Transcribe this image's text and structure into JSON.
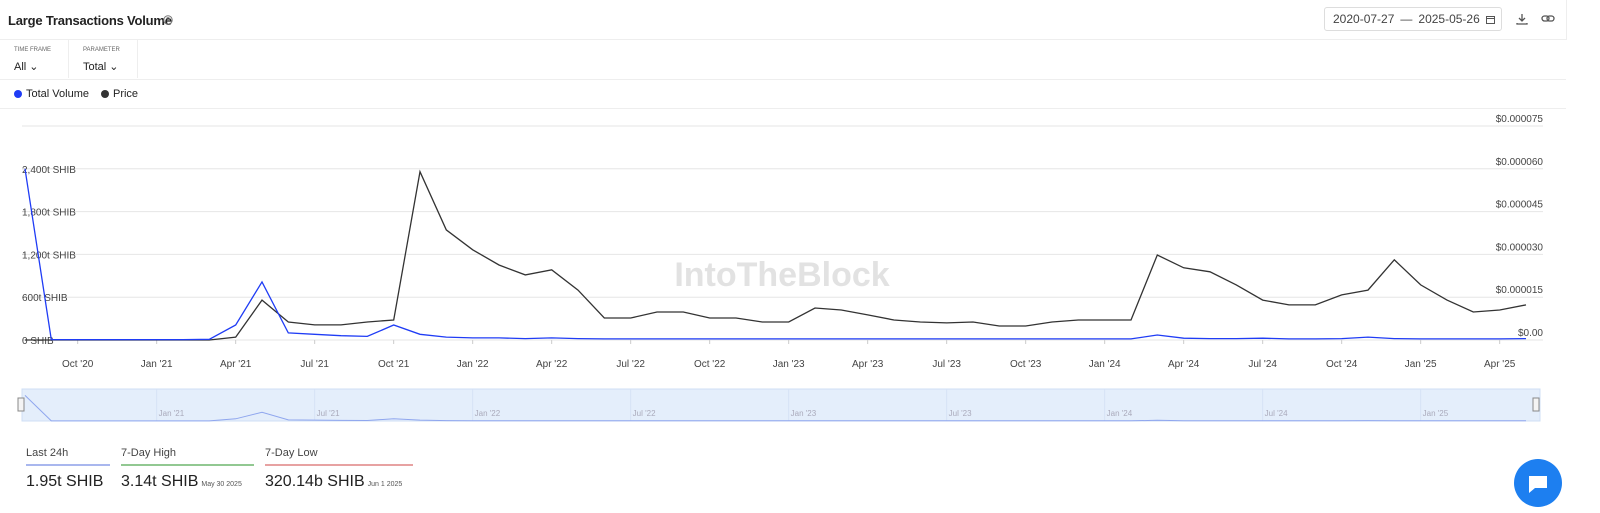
{
  "header": {
    "title": "Large Transactions Volume",
    "date_from": "2020-07-27",
    "date_separator": "—",
    "date_to": "2025-05-26"
  },
  "controls": [
    {
      "label": "TIME FRAME",
      "value": "All"
    },
    {
      "label": "PARAMETER",
      "value": "Total"
    }
  ],
  "watermark": "IntoTheBlock",
  "chart_data": {
    "type": "line",
    "x": [
      "2020-08",
      "2020-09",
      "2020-10",
      "2020-11",
      "2020-12",
      "2021-01",
      "2021-02",
      "2021-03",
      "2021-04",
      "2021-05",
      "2021-06",
      "2021-07",
      "2021-08",
      "2021-09",
      "2021-10",
      "2021-11",
      "2021-12",
      "2022-01",
      "2022-02",
      "2022-03",
      "2022-04",
      "2022-05",
      "2022-06",
      "2022-07",
      "2022-08",
      "2022-09",
      "2022-10",
      "2022-11",
      "2022-12",
      "2023-01",
      "2023-02",
      "2023-03",
      "2023-04",
      "2023-05",
      "2023-06",
      "2023-07",
      "2023-08",
      "2023-09",
      "2023-10",
      "2023-11",
      "2023-12",
      "2024-01",
      "2024-02",
      "2024-03",
      "2024-04",
      "2024-05",
      "2024-06",
      "2024-07",
      "2024-08",
      "2024-09",
      "2024-10",
      "2024-11",
      "2024-12",
      "2025-01",
      "2025-02",
      "2025-03",
      "2025-04",
      "2025-05"
    ],
    "xlim": [
      "2020-08",
      "2025-05"
    ],
    "xticks": [
      {
        "value": "2020-10",
        "label": "Oct '20"
      },
      {
        "value": "2021-01",
        "label": "Jan '21"
      },
      {
        "value": "2021-04",
        "label": "Apr '21"
      },
      {
        "value": "2021-07",
        "label": "Jul '21"
      },
      {
        "value": "2021-10",
        "label": "Oct '21"
      },
      {
        "value": "2022-01",
        "label": "Jan '22"
      },
      {
        "value": "2022-04",
        "label": "Apr '22"
      },
      {
        "value": "2022-07",
        "label": "Jul '22"
      },
      {
        "value": "2022-10",
        "label": "Oct '22"
      },
      {
        "value": "2023-01",
        "label": "Jan '23"
      },
      {
        "value": "2023-04",
        "label": "Apr '23"
      },
      {
        "value": "2023-07",
        "label": "Jul '23"
      },
      {
        "value": "2023-10",
        "label": "Oct '23"
      },
      {
        "value": "2024-01",
        "label": "Jan '24"
      },
      {
        "value": "2024-04",
        "label": "Apr '24"
      },
      {
        "value": "2024-07",
        "label": "Jul '24"
      },
      {
        "value": "2024-10",
        "label": "Oct '24"
      },
      {
        "value": "2025-01",
        "label": "Jan '25"
      },
      {
        "value": "2025-04",
        "label": "Apr '25"
      }
    ],
    "navigator_xticks": [
      {
        "value": "2021-01",
        "label": "Jan '21"
      },
      {
        "value": "2021-07",
        "label": "Jul '21"
      },
      {
        "value": "2022-01",
        "label": "Jan '22"
      },
      {
        "value": "2022-07",
        "label": "Jul '22"
      },
      {
        "value": "2023-01",
        "label": "Jan '23"
      },
      {
        "value": "2023-07",
        "label": "Jul '23"
      },
      {
        "value": "2024-01",
        "label": "Jan '24"
      },
      {
        "value": "2024-07",
        "label": "Jul '24"
      },
      {
        "value": "2025-01",
        "label": "Jan '25"
      }
    ],
    "ylim": [
      0,
      3000
    ],
    "yticks": [
      {
        "value": 0,
        "label": "0 SHIB"
      },
      {
        "value": 600,
        "label": "600t SHIB"
      },
      {
        "value": 1200,
        "label": "1,200t SHIB"
      },
      {
        "value": 1800,
        "label": "1,800t SHIB"
      },
      {
        "value": 2400,
        "label": "2,400t SHIB"
      }
    ],
    "y2lim": [
      0,
      7.5e-05
    ],
    "y2ticks": [
      {
        "value": 0,
        "label": "$0.00"
      },
      {
        "value": 1.5e-05,
        "label": "$0.000015"
      },
      {
        "value": 3e-05,
        "label": "$0.000030"
      },
      {
        "value": 4.5e-05,
        "label": "$0.000045"
      },
      {
        "value": 6e-05,
        "label": "$0.000060"
      },
      {
        "value": 7.5e-05,
        "label": "$0.000075"
      }
    ],
    "grid": true,
    "series": [
      {
        "name": "Total Volume",
        "color": "#1f3cf5",
        "values": [
          2400,
          5,
          5,
          5,
          5,
          5,
          5,
          10,
          210,
          814,
          100,
          80,
          60,
          50,
          210,
          80,
          40,
          30,
          30,
          20,
          30,
          20,
          15,
          15,
          15,
          15,
          15,
          15,
          15,
          15,
          15,
          15,
          15,
          15,
          15,
          15,
          15,
          15,
          15,
          15,
          15,
          15,
          15,
          70,
          25,
          20,
          20,
          25,
          15,
          15,
          20,
          40,
          20,
          15,
          15,
          15,
          15,
          20
        ]
      },
      {
        "name": "Price",
        "color": "#333333",
        "axis": "y2",
        "values": [
          0,
          0,
          0,
          0,
          0,
          0,
          0,
          0,
          1e-06,
          1.4e-05,
          6.3e-06,
          5.3e-06,
          5.3e-06,
          6.3e-06,
          7e-06,
          5.9e-05,
          3.86e-05,
          3.16e-05,
          2.63e-05,
          2.28e-05,
          2.46e-05,
          1.75e-05,
          7.7e-06,
          7.7e-06,
          9.8e-06,
          9.8e-06,
          7.7e-06,
          7.7e-06,
          6.3e-06,
          6.3e-06,
          1.12e-05,
          1.05e-05,
          8.8e-06,
          7e-06,
          6.3e-06,
          6e-06,
          6.3e-06,
          4.9e-06,
          4.9e-06,
          6.3e-06,
          7e-06,
          7e-06,
          7e-06,
          2.98e-05,
          2.53e-05,
          2.39e-05,
          1.93e-05,
          1.4e-05,
          1.23e-05,
          1.23e-05,
          1.58e-05,
          1.75e-05,
          2.81e-05,
          1.93e-05,
          1.4e-05,
          9.8e-06,
          1.05e-05,
          1.23e-05
        ]
      }
    ]
  },
  "stats": [
    {
      "label": "Last 24h",
      "value": "1.95t SHIB",
      "color": "#a9b7ee"
    },
    {
      "label": "7-Day High",
      "value": "3.14t SHIB",
      "date": "May 30 2025",
      "color": "#92c892"
    },
    {
      "label": "7-Day Low",
      "value": "320.14b SHIB",
      "date": "Jun 1 2025",
      "color": "#e7a2a2"
    }
  ]
}
